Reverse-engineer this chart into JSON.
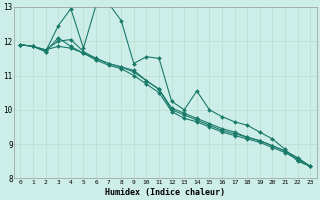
{
  "xlabel": "Humidex (Indice chaleur)",
  "background_color": "#cdeee8",
  "grid_color": "#bbddcc",
  "line_color": "#1a7a6a",
  "xlim": [
    -0.5,
    23.5
  ],
  "ylim": [
    8,
    13
  ],
  "yticks": [
    8,
    9,
    10,
    11,
    12,
    13
  ],
  "xticks": [
    0,
    1,
    2,
    3,
    4,
    5,
    6,
    7,
    8,
    9,
    10,
    11,
    12,
    13,
    14,
    15,
    16,
    17,
    18,
    19,
    20,
    21,
    22,
    23
  ],
  "series": [
    {
      "x": [
        0,
        1,
        2,
        3,
        4,
        5,
        6,
        7,
        8,
        9,
        10,
        11,
        12,
        13,
        14,
        15,
        16,
        17,
        18,
        19,
        20,
        21,
        22,
        23
      ],
      "y": [
        11.9,
        11.85,
        11.7,
        12.45,
        12.95,
        11.8,
        13.05,
        13.1,
        12.6,
        11.35,
        11.55,
        11.5,
        10.25,
        10.0,
        10.55,
        10.0,
        9.8,
        9.65,
        9.55,
        9.35,
        9.15,
        8.85,
        8.5,
        8.35
      ]
    },
    {
      "x": [
        0,
        1,
        2,
        3,
        4,
        5,
        6,
        7,
        8,
        9,
        10,
        11,
        12,
        13,
        14,
        15,
        16,
        17,
        18,
        19,
        20,
        21,
        22,
        23
      ],
      "y": [
        11.9,
        11.85,
        11.7,
        12.1,
        11.85,
        11.65,
        11.5,
        11.35,
        11.25,
        11.1,
        10.85,
        10.6,
        10.0,
        9.85,
        9.7,
        9.55,
        9.4,
        9.3,
        9.2,
        9.1,
        8.95,
        8.8,
        8.6,
        8.35
      ]
    },
    {
      "x": [
        0,
        1,
        2,
        3,
        4,
        5,
        6,
        7,
        8,
        9,
        10,
        11,
        12,
        13,
        14,
        15,
        16,
        17,
        18,
        19,
        20,
        21,
        22,
        23
      ],
      "y": [
        11.9,
        11.85,
        11.75,
        11.85,
        11.8,
        11.65,
        11.45,
        11.3,
        11.2,
        11.0,
        10.75,
        10.5,
        9.95,
        9.75,
        9.65,
        9.5,
        9.35,
        9.25,
        9.15,
        9.05,
        8.9,
        8.75,
        8.55,
        8.35
      ]
    },
    {
      "x": [
        0,
        1,
        2,
        3,
        4,
        5,
        6,
        7,
        8,
        9,
        10,
        11,
        12,
        13,
        14,
        15,
        16,
        17,
        18,
        19,
        20,
        21,
        22,
        23
      ],
      "y": [
        11.9,
        11.85,
        11.75,
        12.0,
        12.05,
        11.7,
        11.5,
        11.35,
        11.25,
        11.15,
        10.85,
        10.6,
        10.05,
        9.9,
        9.75,
        9.6,
        9.45,
        9.35,
        9.2,
        9.1,
        8.95,
        8.8,
        8.6,
        8.35
      ]
    }
  ]
}
